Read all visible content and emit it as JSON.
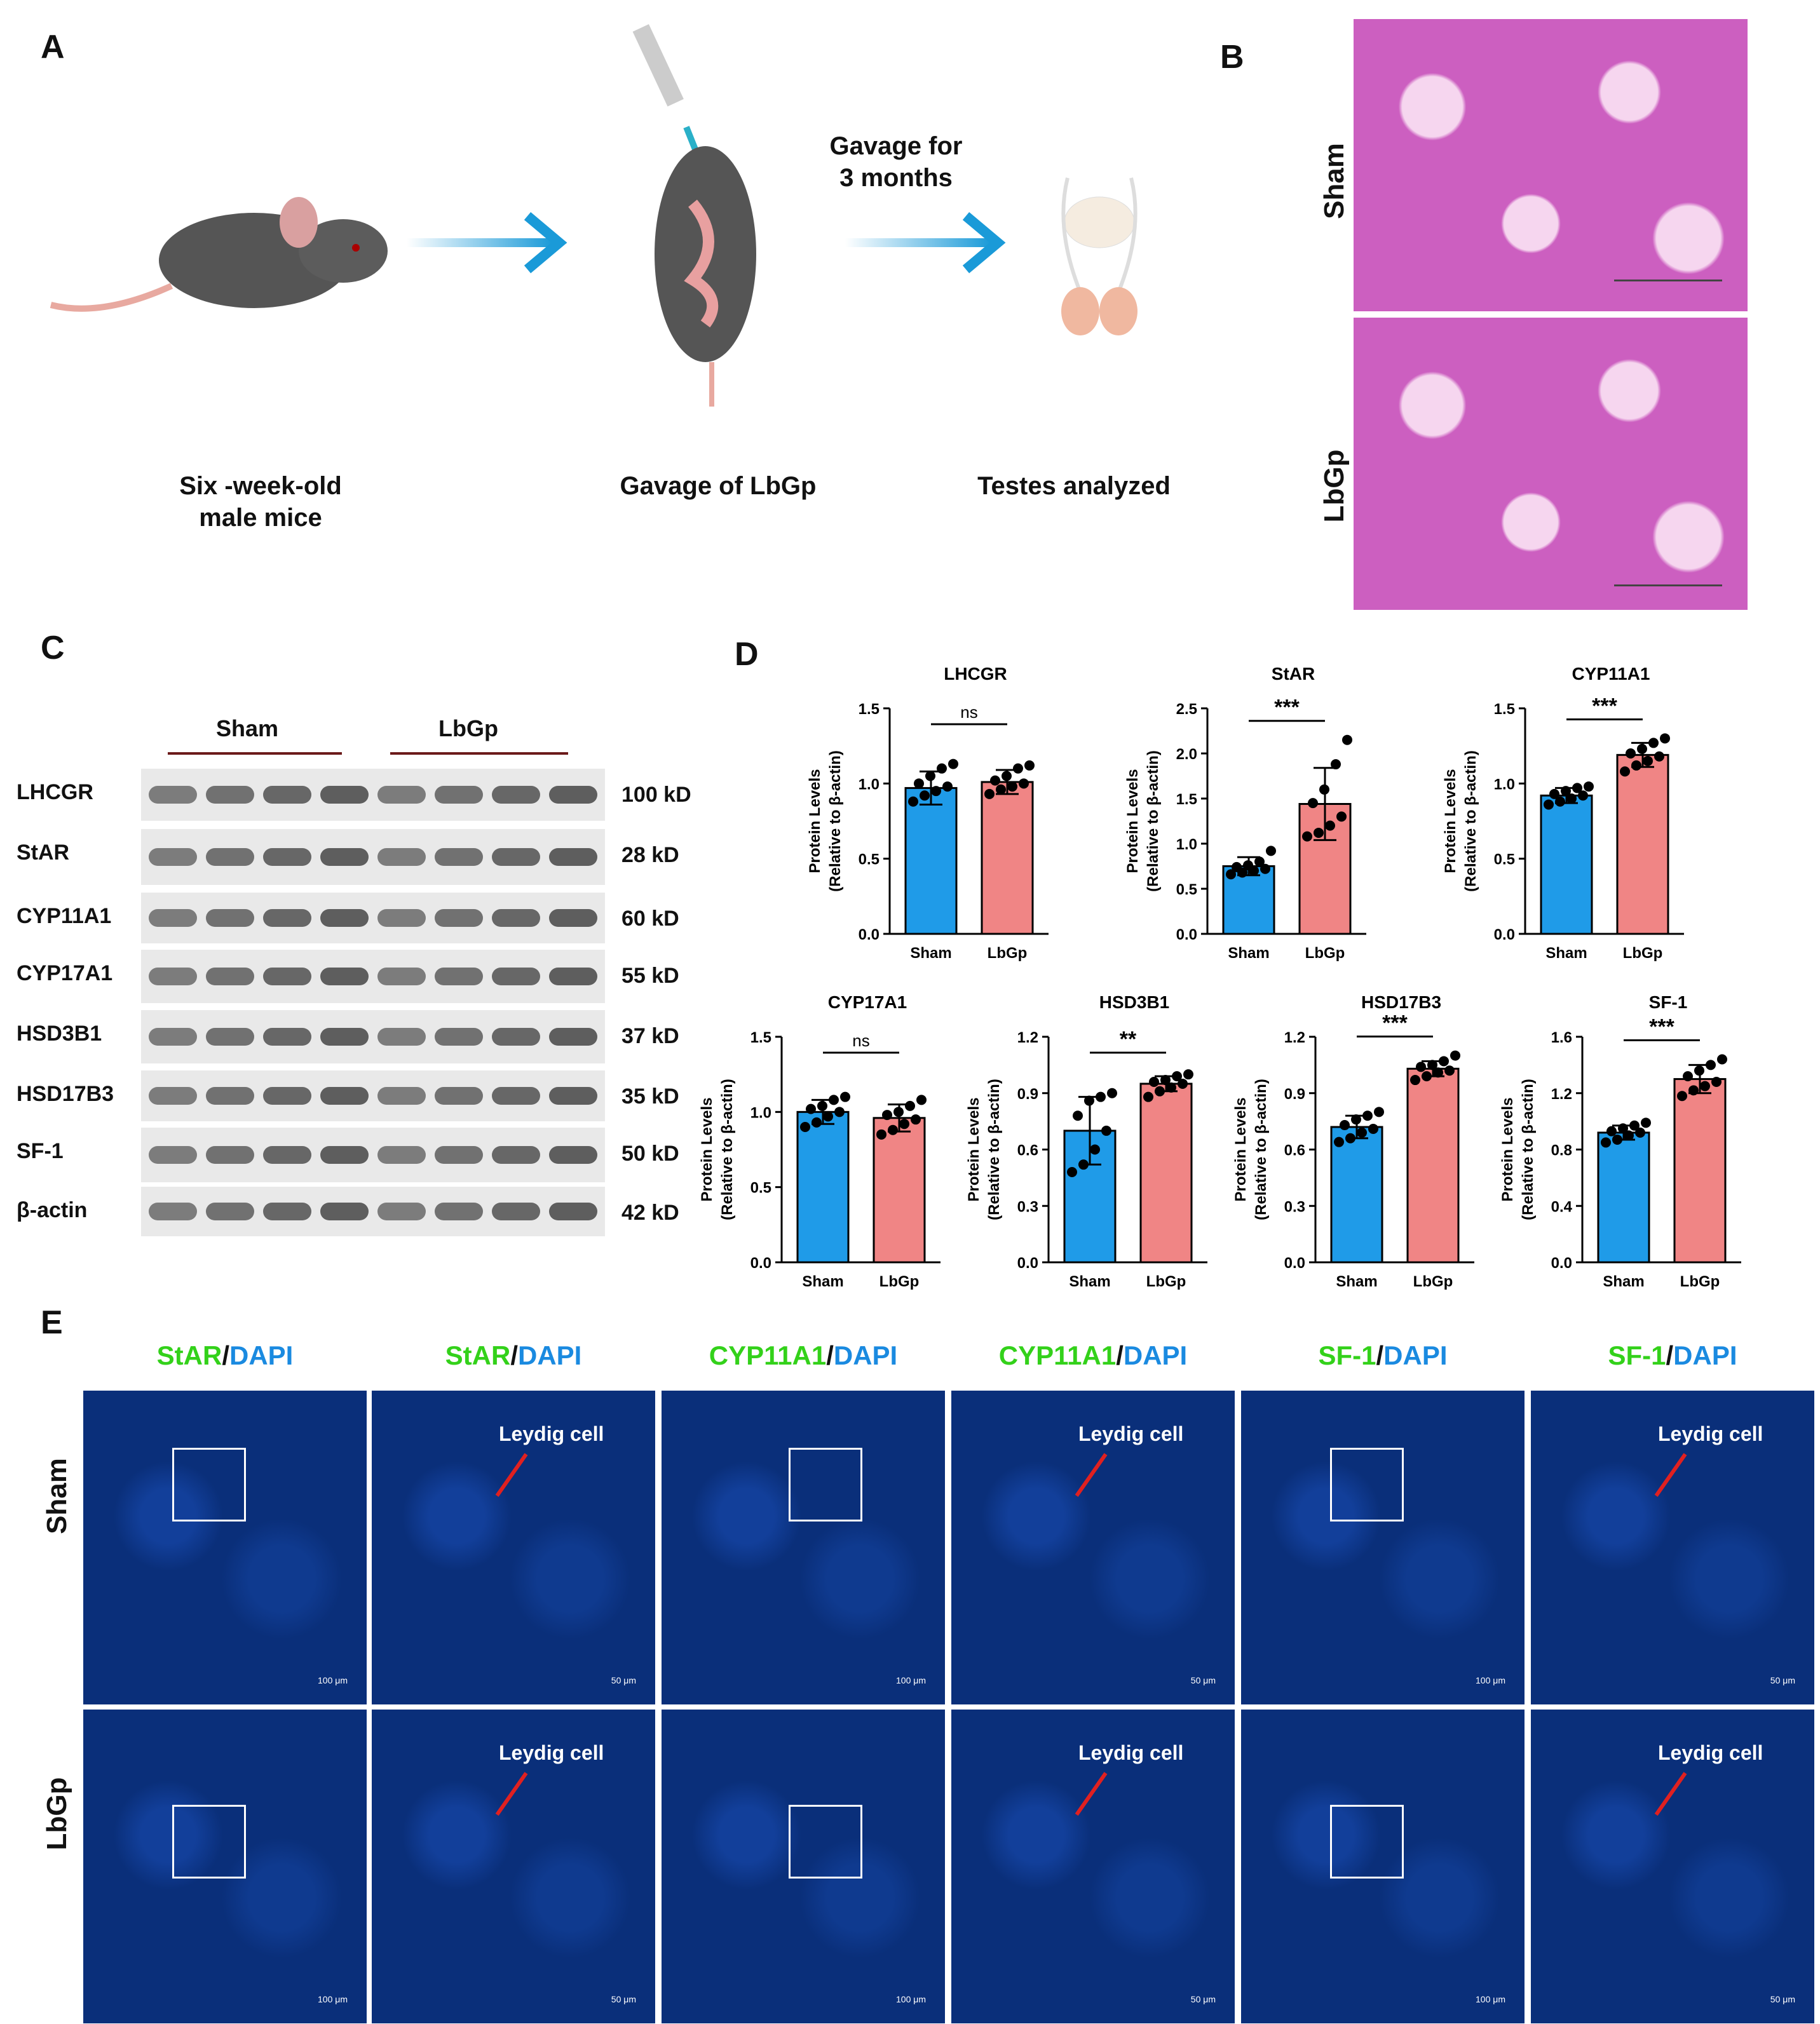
{
  "panels": {
    "A": "A",
    "B": "B",
    "C": "C",
    "D": "D",
    "E": "E"
  },
  "panelA": {
    "step1": "Six -week-old\nmale mice",
    "step2": "Gavage of LbGp",
    "step3": "Testes analyzed",
    "arrow_label": "Gavage for\n3 months"
  },
  "panelB": {
    "rows": [
      "Sham",
      "LbGp"
    ]
  },
  "panelC": {
    "groups": [
      "Sham",
      "LbGp"
    ],
    "proteins": [
      "LHCGR",
      "StAR",
      "CYP11A1",
      "CYP17A1",
      "HSD3B1",
      "HSD17B3",
      "SF-1",
      "β-actin"
    ],
    "weights": [
      "100 kD",
      "28 kD",
      "60 kD",
      "55 kD",
      "37 kD",
      "35 kD",
      "50 kD",
      "42 kD"
    ]
  },
  "panelE": {
    "columns": [
      {
        "green": "StAR",
        "blue": "DAPI"
      },
      {
        "green": "StAR",
        "blue": "DAPI"
      },
      {
        "green": "CYP11A1",
        "blue": "DAPI"
      },
      {
        "green": "CYP11A1",
        "blue": "DAPI"
      },
      {
        "green": "SF-1",
        "blue": "DAPI"
      },
      {
        "green": "SF-1",
        "blue": "DAPI"
      }
    ],
    "slash": "/",
    "rows": [
      "Sham",
      "LbGp"
    ],
    "annotation": "Leydig cell",
    "scale_low": "100 μm",
    "scale_high": "50 μm"
  },
  "chart_data": [
    {
      "type": "bar",
      "title": "LHCGR",
      "categories": [
        "Sham",
        "LbGp"
      ],
      "values": [
        0.97,
        1.01
      ],
      "errors": [
        0.11,
        0.08
      ],
      "sig": "ns",
      "ylim": [
        0,
        1.5
      ],
      "yticks": [
        "0.0",
        "0.5",
        "1.0",
        "1.5"
      ],
      "ylabel": "Protein Levels\n(Relative to β-actin)",
      "points": [
        [
          0.88,
          0.92,
          0.95,
          0.98,
          1.0,
          1.05,
          1.1,
          1.13
        ],
        [
          0.93,
          0.96,
          0.98,
          1.0,
          1.02,
          1.05,
          1.1,
          1.12
        ]
      ]
    },
    {
      "type": "bar",
      "title": "StAR",
      "categories": [
        "Sham",
        "LbGp"
      ],
      "values": [
        0.75,
        1.44
      ],
      "errors": [
        0.1,
        0.4
      ],
      "sig": "***",
      "ylim": [
        0,
        2.5
      ],
      "yticks": [
        "0.0",
        "0.5",
        "1.0",
        "1.5",
        "2.0",
        "2.5"
      ],
      "ylabel": "Protein Levels\n(Relative to β-actin)",
      "points": [
        [
          0.66,
          0.68,
          0.7,
          0.72,
          0.74,
          0.76,
          0.8,
          0.92
        ],
        [
          1.08,
          1.12,
          1.2,
          1.3,
          1.45,
          1.6,
          1.88,
          2.15
        ]
      ]
    },
    {
      "type": "bar",
      "title": "CYP11A1",
      "categories": [
        "Sham",
        "LbGp"
      ],
      "values": [
        0.92,
        1.19
      ],
      "errors": [
        0.05,
        0.08
      ],
      "sig": "***",
      "ylim": [
        0,
        1.5
      ],
      "yticks": [
        "0.0",
        "0.5",
        "1.0",
        "1.5"
      ],
      "ylabel": "Protein Levels\n(Relative to β-actin)",
      "points": [
        [
          0.86,
          0.88,
          0.9,
          0.92,
          0.93,
          0.95,
          0.97,
          0.98
        ],
        [
          1.08,
          1.12,
          1.15,
          1.18,
          1.2,
          1.23,
          1.27,
          1.3
        ]
      ]
    },
    {
      "type": "bar",
      "title": "CYP17A1",
      "categories": [
        "Sham",
        "LbGp"
      ],
      "values": [
        1.0,
        0.96
      ],
      "errors": [
        0.08,
        0.09
      ],
      "sig": "ns",
      "ylim": [
        0,
        1.5
      ],
      "yticks": [
        "0.0",
        "0.5",
        "1.0",
        "1.5"
      ],
      "ylabel": "Protein Levels\n(Relative to β-actin)",
      "points": [
        [
          0.9,
          0.93,
          0.97,
          1.0,
          1.02,
          1.04,
          1.08,
          1.1
        ],
        [
          0.85,
          0.88,
          0.92,
          0.95,
          0.98,
          1.0,
          1.04,
          1.08
        ]
      ]
    },
    {
      "type": "bar",
      "title": "HSD3B1",
      "categories": [
        "Sham",
        "LbGp"
      ],
      "values": [
        0.7,
        0.95
      ],
      "errors": [
        0.18,
        0.04
      ],
      "sig": "**",
      "ylim": [
        0,
        1.2
      ],
      "yticks": [
        "0.0",
        "0.3",
        "0.6",
        "0.9",
        "1.2"
      ],
      "ylabel": "Protein Levels\n(Relative to β-actin)",
      "points": [
        [
          0.48,
          0.52,
          0.6,
          0.7,
          0.78,
          0.86,
          0.88,
          0.9
        ],
        [
          0.88,
          0.91,
          0.93,
          0.95,
          0.96,
          0.97,
          0.99,
          1.0
        ]
      ]
    },
    {
      "type": "bar",
      "title": "HSD17B3",
      "categories": [
        "Sham",
        "LbGp"
      ],
      "values": [
        0.72,
        1.03
      ],
      "errors": [
        0.06,
        0.04
      ],
      "sig": "***",
      "ylim": [
        0,
        1.2
      ],
      "yticks": [
        "0.0",
        "0.3",
        "0.6",
        "0.9",
        "1.2"
      ],
      "ylabel": "Protein Levels\n(Relative to β-actin)",
      "points": [
        [
          0.64,
          0.66,
          0.69,
          0.71,
          0.73,
          0.76,
          0.78,
          0.8
        ],
        [
          0.97,
          0.99,
          1.01,
          1.02,
          1.04,
          1.05,
          1.07,
          1.1
        ]
      ]
    },
    {
      "type": "bar",
      "title": "SF-1",
      "categories": [
        "Sham",
        "LbGp"
      ],
      "values": [
        0.92,
        1.3
      ],
      "errors": [
        0.05,
        0.1
      ],
      "sig": "***",
      "ylim": [
        0,
        1.6
      ],
      "yticks": [
        "0.0",
        "0.4",
        "0.8",
        "1.2",
        "1.6"
      ],
      "ylabel": "Protein Levels\n(Relative to β-actin)",
      "points": [
        [
          0.85,
          0.87,
          0.9,
          0.92,
          0.93,
          0.95,
          0.97,
          0.99
        ],
        [
          1.18,
          1.22,
          1.25,
          1.28,
          1.32,
          1.36,
          1.4,
          1.44
        ]
      ]
    }
  ],
  "colors": {
    "sham": "#1f9be8",
    "lbgp": "#f08585",
    "green": "#33d11a",
    "blue": "#1a8ae0"
  }
}
